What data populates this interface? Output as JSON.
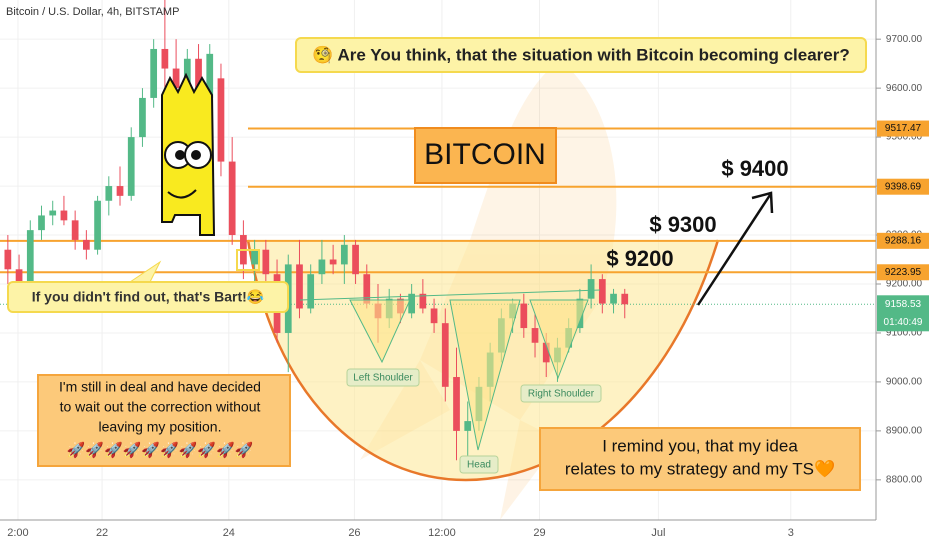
{
  "chart_data": {
    "type": "candlestick",
    "title": "Bitcoin / U.S. Dollar, 4h, BITSTAMP",
    "up_color": "#53b987",
    "down_color": "#eb4d5c",
    "open": [
      9270,
      9230,
      9200,
      9310,
      9340,
      9350,
      9330,
      9290,
      9270,
      9370,
      9400,
      9380,
      9500,
      9580,
      9680,
      9640,
      9600,
      9660,
      9580,
      9620,
      9450,
      9300,
      9240,
      9270,
      9220,
      9100,
      9240,
      9150,
      9220,
      9250,
      9240,
      9280,
      9220,
      9160,
      9130,
      9170,
      9140,
      9180,
      9150,
      9120,
      9010,
      8900,
      8920,
      8990,
      9060,
      9130,
      9160,
      9110,
      9080,
      9040,
      9070,
      9110,
      9170,
      9210,
      9160,
      9180
    ],
    "high": [
      9300,
      9260,
      9330,
      9360,
      9370,
      9380,
      9350,
      9310,
      9380,
      9420,
      9440,
      9520,
      9600,
      9700,
      9790,
      9700,
      9680,
      9690,
      9690,
      9650,
      9500,
      9330,
      9290,
      9290,
      9250,
      9260,
      9290,
      9240,
      9290,
      9280,
      9300,
      9290,
      9240,
      9200,
      9190,
      9180,
      9200,
      9210,
      9170,
      9150,
      9070,
      8960,
      9010,
      9080,
      9150,
      9170,
      9180,
      9140,
      9100,
      9090,
      9130,
      9190,
      9240,
      9220,
      9190,
      9190
    ],
    "low": [
      9200,
      9180,
      9190,
      9290,
      9320,
      9320,
      9270,
      9250,
      9260,
      9340,
      9360,
      9370,
      9480,
      9560,
      9600,
      9580,
      9540,
      9560,
      9560,
      9420,
      9280,
      9210,
      9200,
      9200,
      9080,
      9020,
      9130,
      9140,
      9200,
      9220,
      9200,
      9200,
      9150,
      9080,
      9110,
      9120,
      9130,
      9140,
      9100,
      8960,
      8840,
      8830,
      8900,
      8960,
      9040,
      9100,
      9090,
      9050,
      9010,
      9000,
      9060,
      9100,
      9150,
      9140,
      9140,
      9130
    ],
    "close": [
      9230,
      9200,
      9310,
      9340,
      9350,
      9330,
      9290,
      9270,
      9370,
      9400,
      9380,
      9500,
      9580,
      9680,
      9640,
      9600,
      9660,
      9580,
      9670,
      9450,
      9300,
      9240,
      9270,
      9220,
      9100,
      9240,
      9150,
      9220,
      9250,
      9240,
      9280,
      9220,
      9160,
      9130,
      9170,
      9140,
      9180,
      9150,
      9120,
      8990,
      8900,
      8920,
      8990,
      9060,
      9130,
      9160,
      9110,
      9080,
      9040,
      9070,
      9110,
      9170,
      9210,
      9160,
      9180,
      9158.53
    ],
    "xlim": [
      -0.7,
      77.4
    ],
    "xticks": [
      {
        "value": 0.9,
        "label": "2:00"
      },
      {
        "value": 8.4,
        "label": "22"
      },
      {
        "value": 19.7,
        "label": "24"
      },
      {
        "value": 30.9,
        "label": "26"
      },
      {
        "value": 38.7,
        "label": "12:00"
      },
      {
        "value": 47.4,
        "label": "29"
      },
      {
        "value": 58,
        "label": "Jul"
      },
      {
        "value": 69.8,
        "label": "3"
      }
    ],
    "ylim": [
      8718,
      9780
    ],
    "yticks": [
      {
        "value": 8800,
        "label": "8800.00"
      },
      {
        "value": 8900,
        "label": "8900.00"
      },
      {
        "value": 9000,
        "label": "9000.00"
      },
      {
        "value": 9100,
        "label": "9100.00"
      },
      {
        "value": 9200,
        "label": "9200.00"
      },
      {
        "value": 9300,
        "label": "9300.00"
      },
      {
        "value": 9400,
        "label": "9400.00"
      },
      {
        "value": 9500,
        "label": "9500.00"
      },
      {
        "value": 9600,
        "label": "9600.00"
      },
      {
        "value": 9700,
        "label": "9700.00"
      }
    ],
    "levels": [
      {
        "value": 9517.47,
        "label": "9517.47"
      },
      {
        "value": 9398.69,
        "label": "9398.69"
      },
      {
        "value": 9288.16,
        "label": "9288.16"
      },
      {
        "value": 9223.95,
        "label": "9223.95"
      }
    ],
    "countdown": "01:40:49",
    "annotations": {
      "question": "🧐 Are You think, that the situation with Bitcoin becoming clearer?",
      "bitcoin": "BITCOIN",
      "target_9400": "$ 9400",
      "target_9300": "$ 9300",
      "target_9200": "$ 9200",
      "bart": "If you didn't find out, that's Bart!😂",
      "deal": [
        "I'm still in deal and have decided",
        "to wait out the correction without",
        "leaving my position."
      ],
      "rockets": "🚀🚀🚀🚀🚀🚀🚀🚀🚀🚀",
      "remind": [
        "I remind you, that my idea",
        "relates to my strategy and my TS🧡"
      ],
      "left_shoulder": "Left Shoulder",
      "head": "Head",
      "right_shoulder": "Right Shoulder"
    }
  }
}
